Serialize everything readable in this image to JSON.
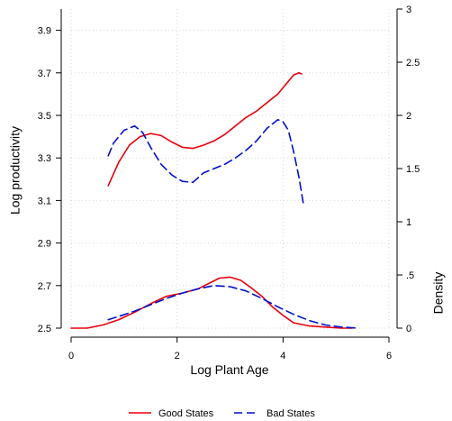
{
  "chart_data": {
    "type": "line",
    "title": "",
    "xlabel": "Log Plant Age",
    "ylabel_left": "Log productivity",
    "ylabel_right": "Density",
    "xlim": [
      0,
      6
    ],
    "ylim_left": [
      2.5,
      4.0
    ],
    "ylim_right": [
      0,
      3
    ],
    "x_ticks": [
      0,
      2,
      4,
      6
    ],
    "x_tick_labels": [
      "0",
      "2",
      "4",
      "6"
    ],
    "y_left_ticks": [
      2.5,
      2.7,
      2.9,
      3.1,
      3.3,
      3.5,
      3.7,
      3.9
    ],
    "y_left_tick_labels": [
      "2.5",
      "2.7",
      "2.9",
      "3.1",
      "3.3",
      "3.5",
      "3.7",
      "3.9"
    ],
    "y_right_ticks": [
      0,
      0.5,
      1,
      1.5,
      2,
      2.5,
      3
    ],
    "y_right_tick_labels": [
      "0",
      ".5",
      "1",
      "1.5",
      "2",
      "2.5",
      "3"
    ],
    "grid": true,
    "legend_position": "bottom",
    "colors": {
      "good": "#e8000b",
      "bad": "#0011cc"
    },
    "series": [
      {
        "name": "Good States",
        "axis": "left",
        "style": "solid",
        "x": [
          0.7,
          0.9,
          1.1,
          1.3,
          1.5,
          1.7,
          1.9,
          2.1,
          2.3,
          2.5,
          2.7,
          2.9,
          3.1,
          3.3,
          3.5,
          3.7,
          3.9,
          4.1,
          4.2,
          4.3,
          4.35
        ],
        "y": [
          3.17,
          3.28,
          3.36,
          3.4,
          3.415,
          3.405,
          3.375,
          3.35,
          3.345,
          3.36,
          3.38,
          3.41,
          3.45,
          3.49,
          3.52,
          3.56,
          3.6,
          3.66,
          3.69,
          3.7,
          3.695
        ]
      },
      {
        "name": "Bad States",
        "axis": "left",
        "style": "dashed",
        "x": [
          0.7,
          0.8,
          1.0,
          1.2,
          1.35,
          1.5,
          1.7,
          1.9,
          2.1,
          2.3,
          2.5,
          2.7,
          2.9,
          3.1,
          3.3,
          3.5,
          3.7,
          3.9,
          4.0,
          4.1,
          4.2,
          4.3,
          4.38
        ],
        "y": [
          3.31,
          3.37,
          3.43,
          3.45,
          3.42,
          3.35,
          3.27,
          3.22,
          3.19,
          3.185,
          3.23,
          3.25,
          3.27,
          3.3,
          3.335,
          3.38,
          3.44,
          3.48,
          3.47,
          3.43,
          3.33,
          3.21,
          3.09
        ]
      },
      {
        "name": "Good States",
        "axis": "right",
        "style": "solid",
        "x": [
          0,
          0.3,
          0.6,
          0.9,
          1.2,
          1.5,
          1.8,
          2.1,
          2.4,
          2.6,
          2.8,
          3.0,
          3.2,
          3.4,
          3.6,
          3.8,
          4.0,
          4.2,
          4.5,
          4.8,
          5.1,
          5.3
        ],
        "y": [
          0.0,
          0.0,
          0.03,
          0.08,
          0.15,
          0.23,
          0.3,
          0.33,
          0.37,
          0.42,
          0.47,
          0.48,
          0.45,
          0.38,
          0.3,
          0.2,
          0.12,
          0.05,
          0.02,
          0.01,
          0.0,
          0.0
        ]
      },
      {
        "name": "Bad States",
        "axis": "right",
        "style": "dashed",
        "x": [
          0.7,
          0.9,
          1.2,
          1.5,
          1.8,
          2.1,
          2.4,
          2.7,
          3.0,
          3.3,
          3.6,
          3.9,
          4.2,
          4.5,
          4.8,
          5.1,
          5.4
        ],
        "y": [
          0.08,
          0.11,
          0.16,
          0.22,
          0.28,
          0.33,
          0.37,
          0.4,
          0.39,
          0.35,
          0.28,
          0.2,
          0.13,
          0.07,
          0.03,
          0.01,
          0.0
        ]
      }
    ],
    "legend": [
      {
        "label": "Good States",
        "style": "solid",
        "color": "#e8000b"
      },
      {
        "label": "Bad States",
        "style": "dashed",
        "color": "#0011cc"
      }
    ]
  }
}
